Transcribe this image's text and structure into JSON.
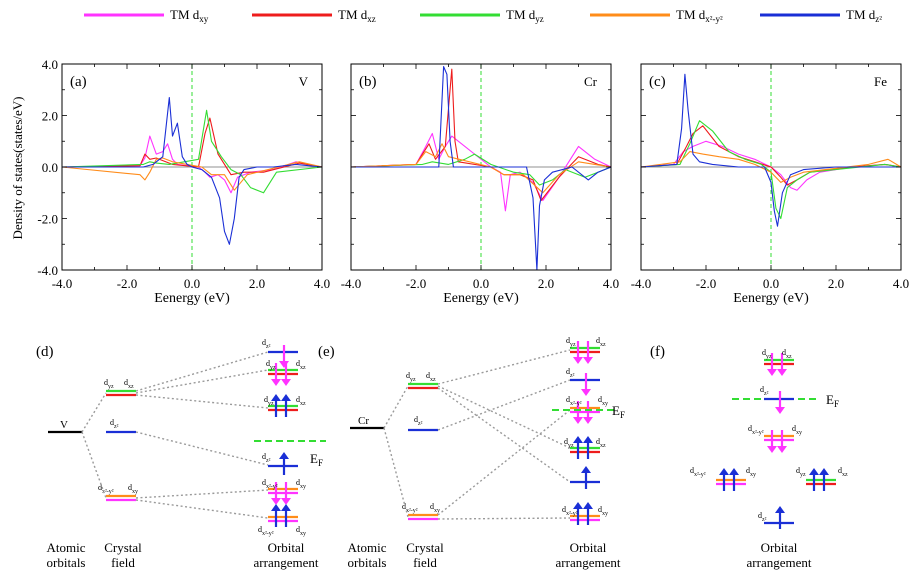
{
  "legend": [
    {
      "label": "TM d",
      "sub": "xy",
      "color": "#ff33ff"
    },
    {
      "label": "TM d",
      "sub": "xz",
      "color": "#ee1c1c"
    },
    {
      "label": "TM d",
      "sub": "yz",
      "color": "#33dd33"
    },
    {
      "label": "TM d",
      "sub": "x²-y²",
      "color": "#ff8c1a"
    },
    {
      "label": "TM d",
      "sub": "z²",
      "color": "#1a2fd6"
    }
  ],
  "dos": {
    "ylabel": "Density of states(states/eV)",
    "xlabel": "Eenergy (eV)",
    "x_ticks": [
      "-4.0",
      "-2.0",
      "0.0",
      "2.0",
      "4.0"
    ],
    "y_ticks": [
      "4.0",
      "2.0",
      "0.0",
      "-2.0",
      "-4.0"
    ],
    "panels": [
      {
        "tag": "(a)",
        "element": "V"
      },
      {
        "tag": "(b)",
        "element": "Cr"
      },
      {
        "tag": "(c)",
        "element": "Fe"
      }
    ]
  },
  "chart_data": [
    {
      "type": "line",
      "panel": "(a) V",
      "xlim": [
        -4,
        4
      ],
      "ylim": [
        -4,
        4
      ],
      "series": [
        {
          "name": "TM dxy",
          "x": [
            -4,
            -1.6,
            -1.45,
            -1.3,
            -1.1,
            -0.9,
            -0.75,
            -0.6,
            -0.45,
            0.2,
            0.4,
            0.55,
            0.8,
            1.0,
            1.2,
            1.4,
            1.8,
            2.5,
            3.2,
            4
          ],
          "y": [
            0,
            0.05,
            0.35,
            1.2,
            0.5,
            0.6,
            0.9,
            0.3,
            0.1,
            0,
            -0.2,
            -0.4,
            -0.3,
            -0.5,
            -1.0,
            -0.4,
            -0.2,
            -0.1,
            0.2,
            0
          ]
        },
        {
          "name": "TM dxz",
          "x": [
            -4,
            -1.6,
            -1.45,
            -1.3,
            -1.1,
            -0.9,
            -0.6,
            0.2,
            0.4,
            0.55,
            0.8,
            1.2,
            1.6,
            2.2,
            3.3,
            4
          ],
          "y": [
            0,
            0.05,
            0.5,
            0.3,
            0.35,
            0.25,
            0.1,
            0,
            1.3,
            1.9,
            0.5,
            -0.3,
            -0.2,
            -0.2,
            0.15,
            0
          ]
        },
        {
          "name": "TM dyz",
          "x": [
            -4,
            -1.5,
            -1.3,
            -1.1,
            -0.7,
            0.2,
            0.45,
            0.6,
            0.9,
            1.2,
            1.5,
            1.8,
            2.2,
            2.6,
            4
          ],
          "y": [
            0,
            0.1,
            0.2,
            0.15,
            0.1,
            0.3,
            2.2,
            1.0,
            0.4,
            -0.1,
            -0.3,
            -0.8,
            -1.0,
            -0.2,
            0
          ]
        },
        {
          "name": "TM dx²-y²",
          "x": [
            -4,
            -1.6,
            -1.45,
            -1.3,
            -1.1,
            -0.9,
            -0.6,
            0.3,
            0.6,
            1.0,
            1.3,
            1.7,
            3.3,
            4
          ],
          "y": [
            0,
            -0.3,
            -0.5,
            -0.2,
            0.3,
            0.35,
            0.2,
            0,
            -0.3,
            -0.3,
            -0.9,
            -0.3,
            0.2,
            0
          ]
        },
        {
          "name": "TM dz²",
          "x": [
            -4,
            -1.5,
            -1.2,
            -0.9,
            -0.7,
            -0.6,
            -0.45,
            -0.3,
            -0.15,
            0,
            0.3,
            0.6,
            0.85,
            1.0,
            1.15,
            1.3,
            1.45,
            1.6,
            2.0,
            2.5,
            3.2,
            4
          ],
          "y": [
            0,
            0,
            0.1,
            0.4,
            2.7,
            1.2,
            1.7,
            0.4,
            0.1,
            0,
            -0.1,
            -0.4,
            -1.2,
            -2.5,
            -3.0,
            -2.0,
            -0.4,
            -0.1,
            0,
            0,
            0.1,
            0
          ]
        }
      ]
    },
    {
      "type": "line",
      "panel": "(b) Cr",
      "xlim": [
        -4,
        4
      ],
      "ylim": [
        -4,
        4
      ],
      "series": [
        {
          "name": "TM dxy",
          "x": [
            -4,
            -2.0,
            -1.7,
            -1.5,
            -1.3,
            -1.1,
            -0.9,
            0.3,
            0.6,
            0.75,
            0.9,
            1.2,
            1.6,
            1.9,
            2.4,
            3.0,
            3.5,
            4
          ],
          "y": [
            0,
            0.1,
            0.8,
            1.3,
            0.3,
            0.8,
            1.2,
            0,
            -0.2,
            -1.7,
            -0.3,
            -0.2,
            -0.6,
            -1.3,
            -0.4,
            0.8,
            0.3,
            0
          ]
        },
        {
          "name": "TM dxz",
          "x": [
            -4,
            -2.0,
            -1.8,
            -1.6,
            -1.4,
            -1.1,
            -0.9,
            -0.8,
            -0.7,
            0.3,
            0.7,
            1.2,
            1.6,
            1.85,
            2.4,
            3.0,
            3.6,
            4
          ],
          "y": [
            0,
            0.1,
            0.5,
            0.9,
            0.3,
            0.8,
            3.8,
            1.0,
            0.2,
            0,
            -0.3,
            -0.3,
            -0.5,
            -1.3,
            -0.4,
            0.4,
            0.1,
            0
          ]
        },
        {
          "name": "TM dyz",
          "x": [
            -4,
            -1.8,
            -1.5,
            -1.0,
            -0.5,
            -0.2,
            0.3,
            1.0,
            1.5,
            1.8,
            2.2,
            2.6,
            3.2,
            3.6,
            4
          ],
          "y": [
            0,
            0.1,
            0.2,
            0.1,
            0.3,
            0.5,
            0.1,
            -0.2,
            -0.3,
            -0.7,
            -0.5,
            -0.1,
            -0.4,
            -0.2,
            0
          ]
        },
        {
          "name": "TM dx²-y²",
          "x": [
            -4,
            -2.0,
            -1.7,
            -1.4,
            -1.2,
            -1.0,
            0.3,
            0.7,
            1.3,
            1.9,
            2.4,
            3.0,
            3.5,
            4
          ],
          "y": [
            0,
            0.1,
            0.6,
            0.4,
            0.9,
            0.4,
            0,
            -0.3,
            -0.3,
            -1.0,
            -0.3,
            0.2,
            0.1,
            0
          ]
        },
        {
          "name": "TM dz²",
          "x": [
            -4,
            -1.3,
            -1.15,
            -1.05,
            -0.95,
            -0.85,
            0,
            1.4,
            1.6,
            1.72,
            1.8,
            1.95,
            2.2,
            2.8,
            3.3,
            3.6,
            4
          ],
          "y": [
            0,
            0,
            3.9,
            3.6,
            1.0,
            0,
            0,
            0,
            -1.2,
            -4.0,
            -1.5,
            -0.5,
            -0.2,
            0,
            -0.5,
            -0.2,
            0
          ]
        }
      ]
    },
    {
      "type": "line",
      "panel": "(c) Fe",
      "xlim": [
        -4,
        4
      ],
      "ylim": [
        -4,
        4
      ],
      "series": [
        {
          "name": "TM dxy",
          "x": [
            -4,
            -3.0,
            -2.7,
            -2.4,
            -2.0,
            -1.5,
            -1.0,
            -0.5,
            0,
            0.3,
            0.6,
            0.8,
            1.1,
            1.5,
            2.5,
            3.5,
            4
          ],
          "y": [
            0,
            0.1,
            0.6,
            0.8,
            1.0,
            0.8,
            0.5,
            0.3,
            0,
            -0.3,
            -0.8,
            -0.9,
            -0.5,
            -0.2,
            0,
            0.1,
            0
          ]
        },
        {
          "name": "TM dxz",
          "x": [
            -4,
            -2.9,
            -2.6,
            -2.4,
            -2.1,
            -1.6,
            -1.0,
            -0.5,
            0,
            0.3,
            0.5,
            0.8,
            1.2,
            2.5,
            3.5,
            4
          ],
          "y": [
            0,
            0.1,
            0.8,
            1.3,
            1.6,
            0.8,
            0.4,
            0.2,
            0,
            -0.4,
            -0.7,
            -0.5,
            -0.2,
            0,
            0.1,
            0
          ]
        },
        {
          "name": "TM dyz",
          "x": [
            -4,
            -2.8,
            -2.5,
            -2.2,
            -1.8,
            -1.3,
            -0.8,
            -0.3,
            0,
            0.15,
            0.3,
            0.5,
            0.8,
            1.2,
            3.5,
            4
          ],
          "y": [
            0,
            0.1,
            0.9,
            1.8,
            1.4,
            0.6,
            0.3,
            0.1,
            -0.2,
            -1.6,
            -2.0,
            -0.8,
            -0.5,
            -0.2,
            0.1,
            0
          ]
        },
        {
          "name": "TM dx²-y²",
          "x": [
            -4,
            -2.8,
            -2.5,
            -2.1,
            -1.6,
            -1.0,
            -0.5,
            0,
            0.3,
            0.6,
            1.0,
            3.0,
            3.6,
            4
          ],
          "y": [
            0,
            0.2,
            0.6,
            0.5,
            0.4,
            0.3,
            0.1,
            -0.2,
            -0.6,
            -0.4,
            -0.2,
            0.1,
            0.3,
            0
          ]
        },
        {
          "name": "TM dz²",
          "x": [
            -4,
            -2.9,
            -2.75,
            -2.65,
            -2.55,
            -2.4,
            -2.2,
            -1.8,
            -1.0,
            -0.2,
            0,
            0.1,
            0.2,
            0.35,
            0.6,
            1.0,
            2.0,
            4
          ],
          "y": [
            0,
            0.1,
            1.5,
            3.6,
            2.2,
            0.5,
            0.2,
            0.1,
            0,
            0,
            -0.6,
            -1.7,
            -2.3,
            -1.0,
            -0.3,
            -0.1,
            0,
            0
          ]
        }
      ]
    }
  ],
  "schemes": {
    "fermi_label": "E",
    "fermi_sub": "F",
    "d": {
      "tag": "(d)",
      "atom": "V",
      "axis_labels": {
        "atomic": [
          "Atomic",
          "orbitals"
        ],
        "crystal": [
          "Crystal",
          "field"
        ],
        "orbital": [
          "Orbital",
          "arrangement"
        ]
      },
      "crystal_labels": [
        "d",
        "yz",
        "d",
        "xz",
        "d",
        "z²",
        "d",
        "x²-y²",
        "d",
        "xy"
      ],
      "orbital_labels": [
        "d",
        "z²",
        "d",
        "yz",
        "d",
        "xz",
        "d",
        "yz",
        "d",
        "xz",
        "d",
        "z²",
        "d",
        "x²-y²",
        "d",
        "xy",
        "d",
        "x²-y²",
        "d",
        "xy"
      ]
    },
    "e": {
      "tag": "(e)",
      "atom": "Cr",
      "axis_labels": {
        "atomic": [
          "Atomic",
          "orbitals"
        ],
        "crystal": [
          "Crystal",
          "field"
        ],
        "orbital": [
          "Orbital",
          "arrangement"
        ]
      },
      "crystal_labels": [
        "d",
        "yz",
        "d",
        "xz",
        "d",
        "z²",
        "d",
        "x²-y²",
        "d",
        "xy"
      ],
      "orbital_labels": [
        "d",
        "yz",
        "d",
        "xz",
        "d",
        "z²",
        "d",
        "x²-y²",
        "d",
        "xy",
        "d",
        "yz",
        "d",
        "xz",
        "d",
        "x²-y²",
        "d",
        "xy"
      ]
    },
    "f": {
      "tag": "(f)",
      "axis_labels": {
        "orbital": [
          "Orbital",
          "arrangement"
        ]
      },
      "orbital_labels": [
        "d",
        "yz",
        "d",
        "xz",
        "d",
        "z²",
        "d",
        "x²-y²",
        "d",
        "xy",
        "d",
        "x²-y²",
        "d",
        "xy",
        "d",
        "yz",
        "d",
        "xz",
        "d",
        "z²"
      ]
    }
  },
  "colors": {
    "xy": "#ff33ff",
    "xz": "#ee1c1c",
    "yz": "#33dd33",
    "x2y2": "#ff8c1a",
    "z2": "#1a2fd6",
    "connector": "#9a9a9a"
  }
}
